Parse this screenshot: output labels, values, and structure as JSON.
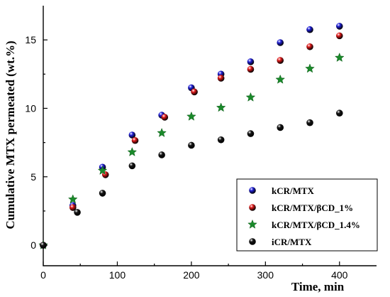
{
  "chart_data": {
    "type": "scatter",
    "title": "",
    "xlabel": "Time, min",
    "ylabel": "Cumulative MTX permeated (wt.%)",
    "xlim": [
      0,
      450
    ],
    "ylim": [
      -1.5,
      17.5
    ],
    "xticks": [
      0,
      100,
      200,
      300,
      400
    ],
    "yticks": [
      0,
      5,
      10,
      15
    ],
    "grid": false,
    "legend_position": "bottom-right",
    "series": [
      {
        "name": "kCR/MTX",
        "marker": "sphere",
        "color": "#1f1fd6",
        "points": [
          [
            0,
            0
          ],
          [
            40,
            2.9
          ],
          [
            80,
            5.7
          ],
          [
            120,
            8.05
          ],
          [
            160,
            9.5
          ],
          [
            200,
            11.5
          ],
          [
            240,
            12.5
          ],
          [
            280,
            13.4
          ],
          [
            320,
            14.8
          ],
          [
            360,
            15.75
          ],
          [
            400,
            16.0
          ]
        ]
      },
      {
        "name": "kCR/MTX/βCD_1%",
        "marker": "sphere",
        "color": "#e01a1a",
        "points": [
          [
            0,
            0
          ],
          [
            40,
            2.75
          ],
          [
            84,
            5.15
          ],
          [
            124,
            7.65
          ],
          [
            164,
            9.35
          ],
          [
            204,
            11.2
          ],
          [
            240,
            12.2
          ],
          [
            280,
            12.85
          ],
          [
            320,
            13.5
          ],
          [
            360,
            14.5
          ],
          [
            400,
            15.3
          ]
        ]
      },
      {
        "name": "kCR/MTX/βCD_1.4%",
        "marker": "star",
        "color": "#1a8a2a",
        "points": [
          [
            0,
            0
          ],
          [
            40,
            3.35
          ],
          [
            80,
            5.45
          ],
          [
            120,
            6.8
          ],
          [
            160,
            8.2
          ],
          [
            200,
            9.4
          ],
          [
            240,
            10.05
          ],
          [
            280,
            10.8
          ],
          [
            320,
            12.1
          ],
          [
            360,
            12.9
          ],
          [
            400,
            13.7
          ]
        ]
      },
      {
        "name": "iCR/MTX",
        "marker": "sphere",
        "color": "#151515",
        "points": [
          [
            0,
            0
          ],
          [
            46,
            2.4
          ],
          [
            80,
            3.8
          ],
          [
            120,
            5.8
          ],
          [
            160,
            6.6
          ],
          [
            200,
            7.3
          ],
          [
            240,
            7.7
          ],
          [
            280,
            8.15
          ],
          [
            320,
            8.6
          ],
          [
            360,
            8.95
          ],
          [
            400,
            9.65
          ]
        ]
      }
    ]
  }
}
